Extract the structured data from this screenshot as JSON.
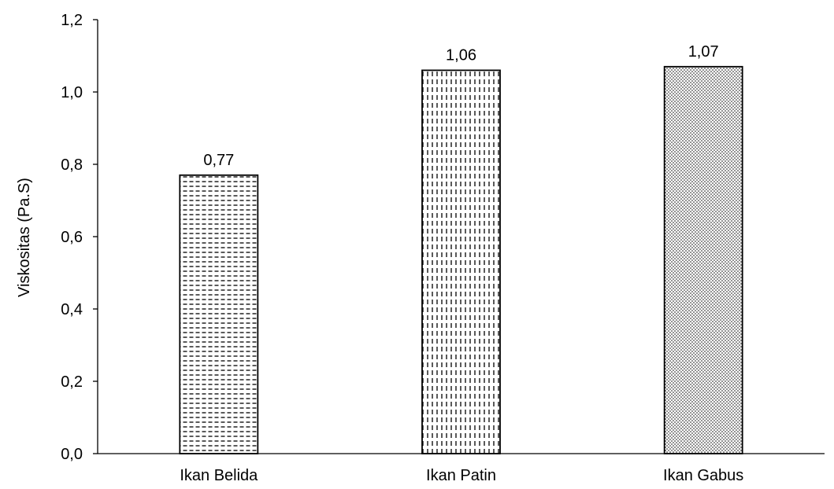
{
  "chart_data": {
    "type": "bar",
    "title": "",
    "xlabel": "",
    "ylabel": "Viskositas (Pa.S)",
    "ylim": [
      0,
      1.2
    ],
    "yticks": [
      "0,0",
      "0,2",
      "0,4",
      "0,6",
      "0,8",
      "1,0",
      "1,2"
    ],
    "ytick_values": [
      0,
      0.2,
      0.4,
      0.6,
      0.8,
      1.0,
      1.2
    ],
    "categories": [
      "Ikan Belida",
      "Ikan Patin",
      "Ikan Gabus"
    ],
    "values": [
      0.77,
      1.06,
      1.07
    ],
    "value_labels": [
      "0,77",
      "1,06",
      "1,07"
    ],
    "fill_patterns": [
      "horizontal-dashes",
      "vertical-dashes",
      "dots"
    ],
    "grid": false,
    "legend": "none",
    "colors": {
      "bar_stroke": "#000000",
      "pattern": "#000000",
      "background": "#ffffff"
    }
  }
}
